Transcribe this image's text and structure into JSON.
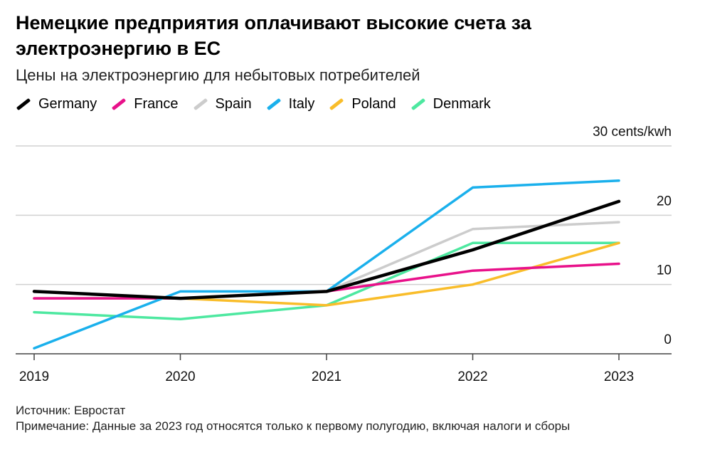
{
  "header": {
    "title": "Немецкие предприятия оплачивают высокие счета за электроэнергию в ЕС",
    "subtitle": "Цены на электроэнергию для небытовых потребителей"
  },
  "footer": {
    "source": "Источник: Евростат",
    "note": "Примечание: Данные за 2023 год относятся только к первому полугодию, включая налоги и сборы"
  },
  "chart_data": {
    "type": "line",
    "x": [
      "2019",
      "2020",
      "2021",
      "2022",
      "2023"
    ],
    "ylim": [
      0,
      30
    ],
    "yticks": [
      0,
      10,
      20,
      30
    ],
    "ytick_labels": [
      "0",
      "10",
      "20",
      "30 cents/kwh"
    ],
    "grid": true,
    "legend_position": "top-left",
    "series": [
      {
        "name": "Germany",
        "color": "#000000",
        "values": [
          9,
          8,
          9,
          15,
          22
        ]
      },
      {
        "name": "France",
        "color": "#e8118a",
        "values": [
          8,
          8,
          9,
          12,
          13
        ]
      },
      {
        "name": "Spain",
        "color": "#cccccc",
        "values": [
          8,
          8,
          9,
          18,
          19
        ]
      },
      {
        "name": "Italy",
        "color": "#1ab0ec",
        "values": [
          0.8,
          9,
          9,
          24,
          25
        ]
      },
      {
        "name": "Poland",
        "color": "#f9bd2a",
        "values": [
          8,
          8,
          7,
          10,
          16
        ]
      },
      {
        "name": "Denmark",
        "color": "#4de8a0",
        "values": [
          6,
          5,
          7,
          16,
          16
        ]
      }
    ]
  }
}
